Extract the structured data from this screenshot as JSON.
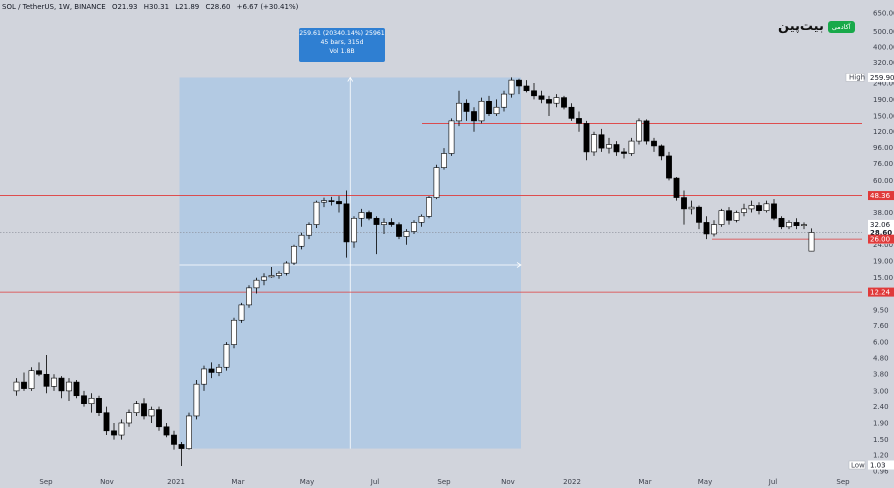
{
  "header": {
    "symbol": "SOL / TetherUS, 1W, BINANCE",
    "open": "O21.93",
    "high": "H30.31",
    "low": "L21.89",
    "close": "C28.60",
    "change": "+6.67 (+30.41%)"
  },
  "logo": {
    "word": "بیت‌پین",
    "badge": "آکادمی"
  },
  "measure": {
    "line1": "259.61 (20340.14%) 25961",
    "line2": "45 bars, 315d",
    "line3": "Vol 1.8B"
  },
  "price_tags": {
    "high_label": "High",
    "high_value": "259.90",
    "low_label": "Low",
    "low_value": "1.03",
    "current_value": "28.60",
    "countdown": "11:11:3",
    "level_48": "48.36",
    "level_26": "26.00",
    "level_12": "12.24",
    "level_32": "32.06"
  },
  "colors": {
    "background": "#d1d4dc",
    "up_candle": "#ffffff",
    "down_candle": "#000000",
    "level_line": "#e03a3a",
    "measure_box": "#aec8e4",
    "tooltip": "#2f7fd2"
  },
  "chart_data": {
    "type": "candlestick",
    "scale": "log",
    "ylim": [
      1.03,
      650
    ],
    "y_ticks": [
      "650.00",
      "500.00",
      "400.00",
      "320.00",
      "240.00",
      "190.00",
      "150.00",
      "120.00",
      "96.00",
      "76.00",
      "60.00",
      "48.00",
      "38.00",
      "32.00",
      "24.00",
      "19.00",
      "15.00",
      "12.00",
      "9.50",
      "7.60",
      "6.00",
      "4.80",
      "3.80",
      "3.00",
      "2.40",
      "1.90",
      "1.50",
      "1.20",
      "0.96"
    ],
    "x_ticks": [
      "Sep",
      "Nov",
      "2021",
      "Mar",
      "May",
      "Jul",
      "Sep",
      "Nov",
      "2022",
      "Mar",
      "May",
      "Jul",
      "Sep"
    ],
    "horizontal_levels": [
      135,
      48.36,
      26.0,
      12.24
    ],
    "measured_move": {
      "from_price": 1.32,
      "to_price": 259.61,
      "bars": 45,
      "days": 315
    },
    "candles": [
      [
        3.0,
        3.6,
        2.8,
        3.4
      ],
      [
        3.4,
        3.9,
        3.0,
        3.1
      ],
      [
        3.1,
        4.2,
        3.0,
        4.0
      ],
      [
        4.0,
        4.5,
        3.7,
        3.8
      ],
      [
        3.8,
        5.0,
        2.9,
        3.2
      ],
      [
        3.2,
        3.8,
        3.0,
        3.6
      ],
      [
        3.6,
        3.7,
        2.7,
        3.0
      ],
      [
        3.0,
        3.6,
        2.6,
        3.4
      ],
      [
        3.4,
        3.5,
        2.7,
        2.8
      ],
      [
        2.8,
        3.0,
        2.4,
        2.5
      ],
      [
        2.5,
        2.9,
        2.2,
        2.7
      ],
      [
        2.7,
        2.8,
        2.1,
        2.2
      ],
      [
        2.2,
        2.4,
        1.6,
        1.7
      ],
      [
        1.7,
        1.9,
        1.5,
        1.6
      ],
      [
        1.6,
        2.0,
        1.5,
        1.9
      ],
      [
        1.9,
        2.3,
        1.8,
        2.2
      ],
      [
        2.2,
        2.6,
        2.1,
        2.5
      ],
      [
        2.5,
        2.7,
        2.0,
        2.1
      ],
      [
        2.1,
        2.4,
        1.9,
        2.3
      ],
      [
        2.3,
        2.4,
        1.7,
        1.8
      ],
      [
        1.8,
        1.9,
        1.55,
        1.6
      ],
      [
        1.6,
        1.7,
        1.3,
        1.4
      ],
      [
        1.4,
        1.45,
        1.03,
        1.32
      ],
      [
        1.32,
        2.2,
        1.3,
        2.1
      ],
      [
        2.1,
        3.5,
        2.0,
        3.3
      ],
      [
        3.3,
        4.3,
        3.0,
        4.1
      ],
      [
        4.1,
        4.5,
        3.6,
        3.9
      ],
      [
        3.9,
        4.4,
        3.7,
        4.2
      ],
      [
        4.2,
        6.0,
        4.0,
        5.8
      ],
      [
        5.8,
        8.5,
        5.5,
        8.2
      ],
      [
        8.2,
        10.5,
        7.9,
        10.2
      ],
      [
        10.2,
        13.5,
        9.8,
        13.0
      ],
      [
        13.0,
        15.0,
        12.0,
        14.5
      ],
      [
        14.5,
        16.0,
        13.5,
        15.2
      ],
      [
        15.2,
        17.5,
        15.0,
        15.5
      ],
      [
        15.5,
        16.5,
        14.8,
        16.0
      ],
      [
        16.0,
        19.0,
        15.5,
        18.5
      ],
      [
        18.5,
        24.0,
        18.0,
        23.5
      ],
      [
        23.5,
        28.5,
        22.5,
        27.5
      ],
      [
        27.5,
        33.0,
        26.0,
        32.0
      ],
      [
        32.0,
        45.0,
        30.5,
        44.0
      ],
      [
        44.0,
        47.0,
        41.0,
        45.0
      ],
      [
        45.0,
        47.5,
        42.0,
        44.5
      ],
      [
        44.5,
        48.0,
        38.0,
        43.0
      ],
      [
        43.0,
        52.0,
        20.0,
        25.0
      ],
      [
        25.0,
        36.0,
        23.0,
        35.0
      ],
      [
        35.0,
        40.0,
        31.0,
        38.0
      ],
      [
        38.0,
        39.0,
        34.0,
        35.0
      ],
      [
        35.0,
        36.0,
        21.0,
        32.0
      ],
      [
        32.0,
        35.0,
        28.0,
        33.0
      ],
      [
        33.0,
        35.0,
        31.0,
        32.0
      ],
      [
        32.0,
        33.0,
        26.0,
        27.0
      ],
      [
        27.0,
        30.0,
        24.0,
        29.0
      ],
      [
        29.0,
        34.0,
        28.0,
        33.0
      ],
      [
        33.0,
        37.0,
        31.0,
        36.0
      ],
      [
        36.0,
        48.0,
        35.0,
        47.0
      ],
      [
        47.0,
        75.0,
        46.0,
        72.0
      ],
      [
        72.0,
        95.0,
        70.0,
        88.0
      ],
      [
        88.0,
        145.0,
        85.0,
        140.0
      ],
      [
        140.0,
        215.0,
        130.0,
        180.0
      ],
      [
        180.0,
        190.0,
        140.0,
        160.0
      ],
      [
        160.0,
        170.0,
        120.0,
        140.0
      ],
      [
        140.0,
        195.0,
        135.0,
        185.0
      ],
      [
        185.0,
        200.0,
        150.0,
        155.0
      ],
      [
        155.0,
        190.0,
        150.0,
        170.0
      ],
      [
        170.0,
        215.0,
        160.0,
        205.0
      ],
      [
        205.0,
        259.9,
        195.0,
        250.0
      ],
      [
        250.0,
        255.0,
        205.0,
        230.0
      ],
      [
        230.0,
        250.0,
        210.0,
        215.0
      ],
      [
        215.0,
        240.0,
        190.0,
        200.0
      ],
      [
        200.0,
        215.0,
        180.0,
        190.0
      ],
      [
        190.0,
        200.0,
        150.0,
        180.0
      ],
      [
        180.0,
        205.0,
        170.0,
        195.0
      ],
      [
        195.0,
        200.0,
        165.0,
        170.0
      ],
      [
        170.0,
        180.0,
        140.0,
        145.0
      ],
      [
        145.0,
        160.0,
        120.0,
        135.0
      ],
      [
        135.0,
        140.0,
        80.0,
        90.0
      ],
      [
        90.0,
        120.0,
        85.0,
        115.0
      ],
      [
        115.0,
        125.0,
        90.0,
        95.0
      ],
      [
        95.0,
        110.0,
        88.0,
        100.0
      ],
      [
        100.0,
        105.0,
        85.0,
        90.0
      ],
      [
        90.0,
        95.0,
        82.0,
        88.0
      ],
      [
        88.0,
        110.0,
        85.0,
        105.0
      ],
      [
        105.0,
        145.0,
        100.0,
        140.0
      ],
      [
        140.0,
        143.0,
        100.0,
        105.0
      ],
      [
        105.0,
        110.0,
        90.0,
        98.0
      ],
      [
        98.0,
        100.0,
        80.0,
        85.0
      ],
      [
        85.0,
        90.0,
        60.0,
        62.0
      ],
      [
        62.0,
        63.0,
        45.0,
        47.0
      ],
      [
        47.0,
        52.0,
        32.0,
        40.0
      ],
      [
        40.0,
        45.0,
        37.0,
        41.0
      ],
      [
        41.0,
        42.0,
        30.0,
        33.0
      ],
      [
        33.0,
        36.0,
        26.0,
        28.0
      ],
      [
        28.0,
        34.0,
        27.0,
        32.0
      ],
      [
        32.0,
        40.0,
        31.0,
        39.0
      ],
      [
        39.0,
        41.0,
        32.0,
        34.0
      ],
      [
        34.0,
        39.0,
        33.0,
        38.0
      ],
      [
        38.0,
        43.0,
        36.0,
        40.0
      ],
      [
        40.0,
        45.0,
        38.0,
        42.0
      ],
      [
        42.0,
        44.0,
        37.0,
        39.0
      ],
      [
        39.0,
        45.0,
        38.0,
        43.0
      ],
      [
        43.0,
        46.0,
        34.0,
        35.0
      ],
      [
        35.0,
        36.0,
        30.0,
        31.0
      ],
      [
        31.0,
        34.0,
        30.0,
        33.0
      ],
      [
        33.0,
        35.0,
        30.0,
        31.5
      ],
      [
        31.5,
        33.0,
        30.0,
        32.0
      ],
      [
        21.93,
        30.31,
        21.89,
        28.6
      ]
    ]
  }
}
